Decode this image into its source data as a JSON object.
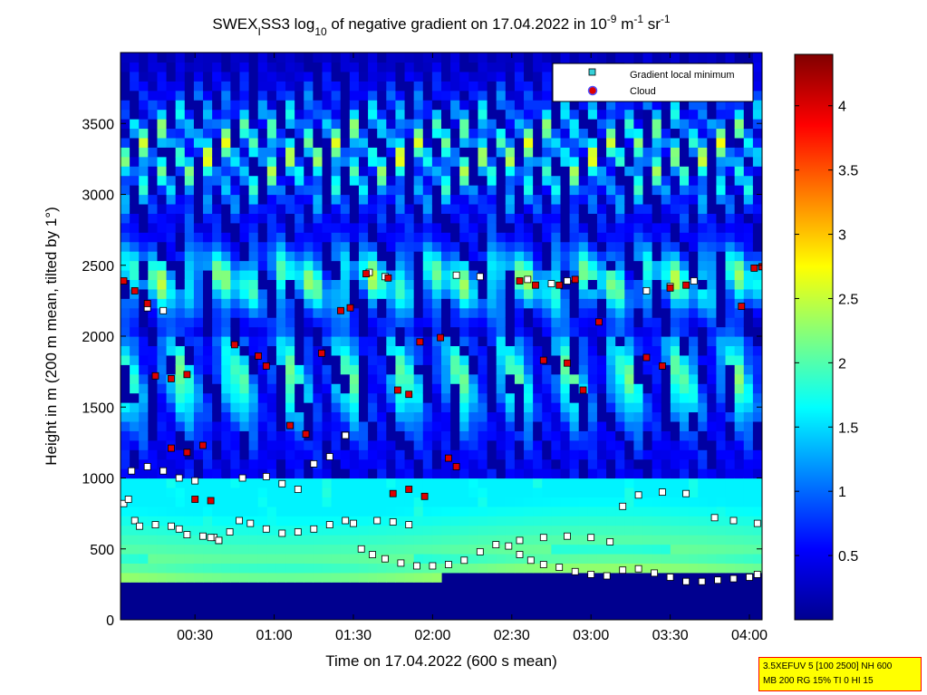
{
  "chart_data": {
    "type": "heatmap",
    "title": {
      "prefix": "SWEX",
      "prefix_sub": "I",
      "mid": "SS3 log",
      "log_sub": "10",
      "rest": " of negative gradient on 17.04.2022 in 10",
      "exp1": "-9",
      "unit1": " m",
      "exp2": "-1",
      "unit2": " sr",
      "exp3": "-1"
    },
    "xlabel": "Time on 17.04.2022 (600 s mean)",
    "ylabel": "Height in m (200 m mean, tilted by 1°)",
    "x_ticks": [
      "00:30",
      "01:00",
      "01:30",
      "02:00",
      "02:30",
      "03:00",
      "03:30",
      "04:00"
    ],
    "x_tick_hours": [
      0.5,
      1.0,
      1.5,
      2.0,
      2.5,
      3.0,
      3.5,
      4.0
    ],
    "xlim": [
      0.03,
      4.08
    ],
    "y_ticks": [
      "0",
      "500",
      "1000",
      "1500",
      "2000",
      "2500",
      "3000",
      "3500"
    ],
    "ylim": [
      0,
      4000
    ],
    "colorbar": {
      "ticks": [
        "0.5",
        "1",
        "1.5",
        "2",
        "2.5",
        "3",
        "3.5",
        "4"
      ],
      "range": [
        0,
        4.4
      ],
      "colormap": "jet"
    },
    "legend": {
      "placement": "top-right",
      "items": [
        {
          "label": "Gradient local minimum",
          "color": "#35d0d8",
          "marker": "square"
        },
        {
          "label": "Cloud",
          "color": "#dd0000",
          "marker": "circle"
        }
      ]
    },
    "annotation": {
      "line1": "3.5XEFUV 5 [100 2500] NH 600",
      "line2": "MB 200 RG 15% TI 0 HI 15"
    },
    "series": [
      {
        "name": "Gradient local minimum",
        "points": [
          [
            0.05,
            820
          ],
          [
            0.08,
            850
          ],
          [
            0.12,
            700
          ],
          [
            0.15,
            660
          ],
          [
            0.25,
            670
          ],
          [
            0.35,
            660
          ],
          [
            0.4,
            640
          ],
          [
            0.45,
            600
          ],
          [
            0.55,
            590
          ],
          [
            0.62,
            580
          ],
          [
            0.65,
            560
          ],
          [
            0.72,
            620
          ],
          [
            0.78,
            700
          ],
          [
            0.85,
            680
          ],
          [
            0.95,
            640
          ],
          [
            1.05,
            610
          ],
          [
            1.15,
            620
          ],
          [
            1.25,
            640
          ],
          [
            1.35,
            670
          ],
          [
            1.45,
            700
          ],
          [
            1.5,
            680
          ],
          [
            1.55,
            500
          ],
          [
            1.62,
            460
          ],
          [
            1.7,
            430
          ],
          [
            1.8,
            400
          ],
          [
            1.9,
            380
          ],
          [
            2.0,
            380
          ],
          [
            2.1,
            390
          ],
          [
            2.2,
            420
          ],
          [
            2.3,
            480
          ],
          [
            2.4,
            530
          ],
          [
            2.48,
            520
          ],
          [
            2.55,
            460
          ],
          [
            2.62,
            420
          ],
          [
            2.7,
            390
          ],
          [
            2.8,
            370
          ],
          [
            2.9,
            340
          ],
          [
            3.0,
            320
          ],
          [
            3.1,
            310
          ],
          [
            3.2,
            350
          ],
          [
            3.3,
            360
          ],
          [
            3.4,
            330
          ],
          [
            3.5,
            300
          ],
          [
            3.6,
            270
          ],
          [
            3.7,
            270
          ],
          [
            3.8,
            280
          ],
          [
            3.9,
            290
          ],
          [
            4.0,
            300
          ],
          [
            4.05,
            320
          ],
          [
            2.55,
            560
          ],
          [
            2.7,
            580
          ],
          [
            2.85,
            590
          ],
          [
            3.0,
            580
          ],
          [
            3.12,
            550
          ],
          [
            3.2,
            800
          ],
          [
            3.3,
            880
          ],
          [
            3.45,
            900
          ],
          [
            3.6,
            890
          ],
          [
            3.78,
            720
          ],
          [
            3.9,
            700
          ],
          [
            4.05,
            680
          ],
          [
            1.65,
            700
          ],
          [
            1.75,
            690
          ],
          [
            1.85,
            670
          ],
          [
            0.1,
            1050
          ],
          [
            0.2,
            1080
          ],
          [
            0.3,
            1050
          ],
          [
            0.4,
            1000
          ],
          [
            0.5,
            980
          ],
          [
            0.8,
            1000
          ],
          [
            0.95,
            1010
          ],
          [
            1.05,
            960
          ],
          [
            1.15,
            920
          ],
          [
            1.25,
            1100
          ],
          [
            1.35,
            1150
          ],
          [
            1.45,
            1300
          ],
          [
            0.2,
            2200
          ],
          [
            0.3,
            2180
          ],
          [
            1.6,
            2450
          ],
          [
            1.7,
            2420
          ],
          [
            2.15,
            2430
          ],
          [
            2.3,
            2420
          ],
          [
            2.6,
            2400
          ],
          [
            2.75,
            2370
          ],
          [
            2.85,
            2390
          ],
          [
            3.35,
            2320
          ],
          [
            3.5,
            2350
          ],
          [
            3.65,
            2390
          ],
          [
            0.6,
            580
          ],
          [
            0.65,
            560
          ]
        ]
      },
      {
        "name": "Cloud",
        "points": [
          [
            0.05,
            2390
          ],
          [
            0.12,
            2320
          ],
          [
            0.2,
            2230
          ],
          [
            0.25,
            1720
          ],
          [
            0.35,
            1700
          ],
          [
            0.45,
            1730
          ],
          [
            0.35,
            1210
          ],
          [
            0.45,
            1180
          ],
          [
            0.55,
            1230
          ],
          [
            0.75,
            1940
          ],
          [
            0.9,
            1860
          ],
          [
            0.95,
            1790
          ],
          [
            1.1,
            1370
          ],
          [
            1.2,
            1310
          ],
          [
            1.3,
            1880
          ],
          [
            1.42,
            2180
          ],
          [
            1.48,
            2200
          ],
          [
            1.58,
            2440
          ],
          [
            1.72,
            2410
          ],
          [
            1.78,
            1620
          ],
          [
            1.85,
            1590
          ],
          [
            1.92,
            1960
          ],
          [
            2.05,
            1990
          ],
          [
            2.1,
            1140
          ],
          [
            2.15,
            1080
          ],
          [
            1.75,
            890
          ],
          [
            1.85,
            920
          ],
          [
            1.95,
            870
          ],
          [
            2.55,
            2390
          ],
          [
            2.65,
            2360
          ],
          [
            2.8,
            2360
          ],
          [
            2.9,
            2400
          ],
          [
            2.7,
            1830
          ],
          [
            2.85,
            1810
          ],
          [
            2.95,
            1620
          ],
          [
            3.05,
            2100
          ],
          [
            3.35,
            1850
          ],
          [
            3.45,
            1790
          ],
          [
            3.5,
            2340
          ],
          [
            3.6,
            2360
          ],
          [
            3.95,
            2210
          ],
          [
            4.03,
            2480
          ],
          [
            4.08,
            2490
          ],
          [
            0.5,
            850
          ],
          [
            0.6,
            840
          ]
        ]
      }
    ]
  }
}
